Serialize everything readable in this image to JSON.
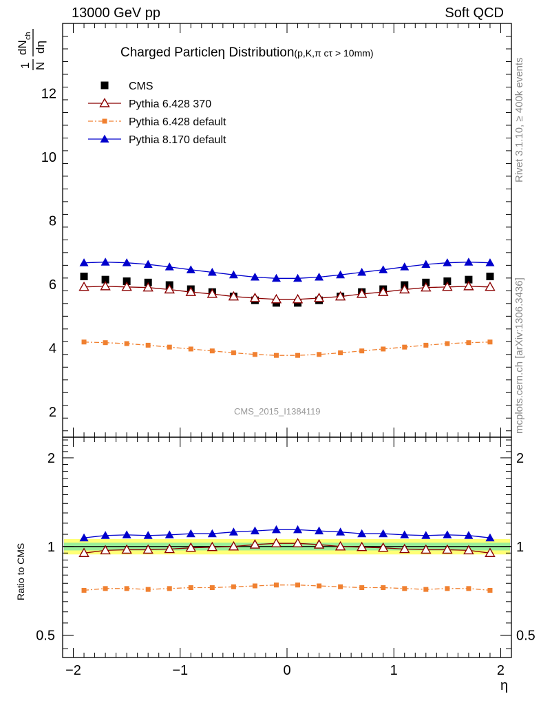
{
  "header": {
    "left": "13000 GeV pp",
    "right": "Soft QCD"
  },
  "side_texts": {
    "rivet": "Rivet 3.1.10, ≥ 400k events",
    "mcplots": "mcplots.cern.ch [arXiv:1306.3436]"
  },
  "watermark": "CMS_2015_I1384119",
  "chart_data": [
    {
      "type": "scatter",
      "title": "Charged Particleη Distribution",
      "title_suffix": "(p,K,π cτ > 10mm)",
      "ylabel": "1/N dN_ch/dη",
      "xlim": [
        -2.1,
        2.1
      ],
      "ylim": [
        1.2,
        14.2
      ],
      "yticks": [
        2,
        4,
        6,
        8,
        10,
        12
      ],
      "x": [
        -1.9,
        -1.7,
        -1.5,
        -1.3,
        -1.1,
        -0.9,
        -0.7,
        -0.5,
        -0.3,
        -0.1,
        0.1,
        0.3,
        0.5,
        0.7,
        0.9,
        1.1,
        1.3,
        1.5,
        1.7,
        1.9
      ],
      "legend_placement": "top-left",
      "series": [
        {
          "name": "CMS",
          "color": "#000000",
          "marker": "square",
          "line": "none",
          "values": [
            6.25,
            6.15,
            6.1,
            6.06,
            5.98,
            5.85,
            5.76,
            5.62,
            5.5,
            5.42,
            5.42,
            5.5,
            5.62,
            5.76,
            5.85,
            5.98,
            6.06,
            6.1,
            6.15,
            6.25
          ]
        },
        {
          "name": "Pythia 6.428 370",
          "color": "#8b0000",
          "marker": "open-triangle",
          "line": "solid",
          "values": [
            5.92,
            5.94,
            5.92,
            5.9,
            5.84,
            5.76,
            5.7,
            5.62,
            5.57,
            5.53,
            5.53,
            5.57,
            5.62,
            5.7,
            5.76,
            5.84,
            5.9,
            5.92,
            5.94,
            5.92
          ]
        },
        {
          "name": "Pythia 6.428 default",
          "color": "#f08030",
          "marker": "small-square",
          "line": "dashdot",
          "values": [
            4.19,
            4.17,
            4.14,
            4.09,
            4.03,
            3.97,
            3.91,
            3.85,
            3.8,
            3.77,
            3.77,
            3.8,
            3.85,
            3.91,
            3.97,
            4.03,
            4.09,
            4.14,
            4.17,
            4.19
          ]
        },
        {
          "name": "Pythia 8.170 default",
          "color": "#0000cc",
          "marker": "triangle",
          "line": "solid",
          "values": [
            6.68,
            6.7,
            6.68,
            6.63,
            6.55,
            6.46,
            6.38,
            6.3,
            6.23,
            6.19,
            6.19,
            6.23,
            6.3,
            6.38,
            6.46,
            6.55,
            6.63,
            6.68,
            6.7,
            6.68
          ]
        }
      ]
    },
    {
      "type": "scatter",
      "ylabel": "Ratio to CMS",
      "xlabel": "η",
      "xlim": [
        -2.1,
        2.1
      ],
      "ylim": [
        0.42,
        2.35
      ],
      "y_scale": "log",
      "yticks": [
        0.5,
        1,
        2
      ],
      "xticks": [
        -2,
        -1,
        0,
        1,
        2
      ],
      "xtick_labels": [
        "−2",
        "−1",
        "0",
        "1",
        "2"
      ],
      "band_inner": [
        0.97,
        1.03
      ],
      "band_outer": [
        0.94,
        1.06
      ],
      "x": [
        -1.9,
        -1.7,
        -1.5,
        -1.3,
        -1.1,
        -0.9,
        -0.7,
        -0.5,
        -0.3,
        -0.1,
        0.1,
        0.3,
        0.5,
        0.7,
        0.9,
        1.1,
        1.3,
        1.5,
        1.7,
        1.9
      ],
      "series": [
        {
          "name": "Pythia 6.428 370",
          "color": "#8b0000",
          "marker": "open-triangle",
          "line": "solid",
          "values": [
            0.95,
            0.97,
            0.975,
            0.975,
            0.98,
            0.99,
            0.995,
            1.0,
            1.015,
            1.025,
            1.025,
            1.015,
            1.0,
            0.995,
            0.99,
            0.98,
            0.975,
            0.975,
            0.97,
            0.95
          ]
        },
        {
          "name": "Pythia 6.428 default",
          "color": "#f08030",
          "marker": "small-square",
          "line": "dashdot",
          "values": [
            0.71,
            0.72,
            0.72,
            0.715,
            0.72,
            0.725,
            0.725,
            0.73,
            0.735,
            0.74,
            0.74,
            0.735,
            0.73,
            0.725,
            0.725,
            0.72,
            0.715,
            0.72,
            0.72,
            0.71
          ]
        },
        {
          "name": "Pythia 8.170 default",
          "color": "#0000cc",
          "marker": "triangle",
          "line": "solid",
          "values": [
            1.07,
            1.09,
            1.095,
            1.09,
            1.095,
            1.105,
            1.105,
            1.12,
            1.13,
            1.14,
            1.14,
            1.13,
            1.12,
            1.105,
            1.105,
            1.095,
            1.09,
            1.095,
            1.09,
            1.07
          ]
        }
      ]
    }
  ]
}
